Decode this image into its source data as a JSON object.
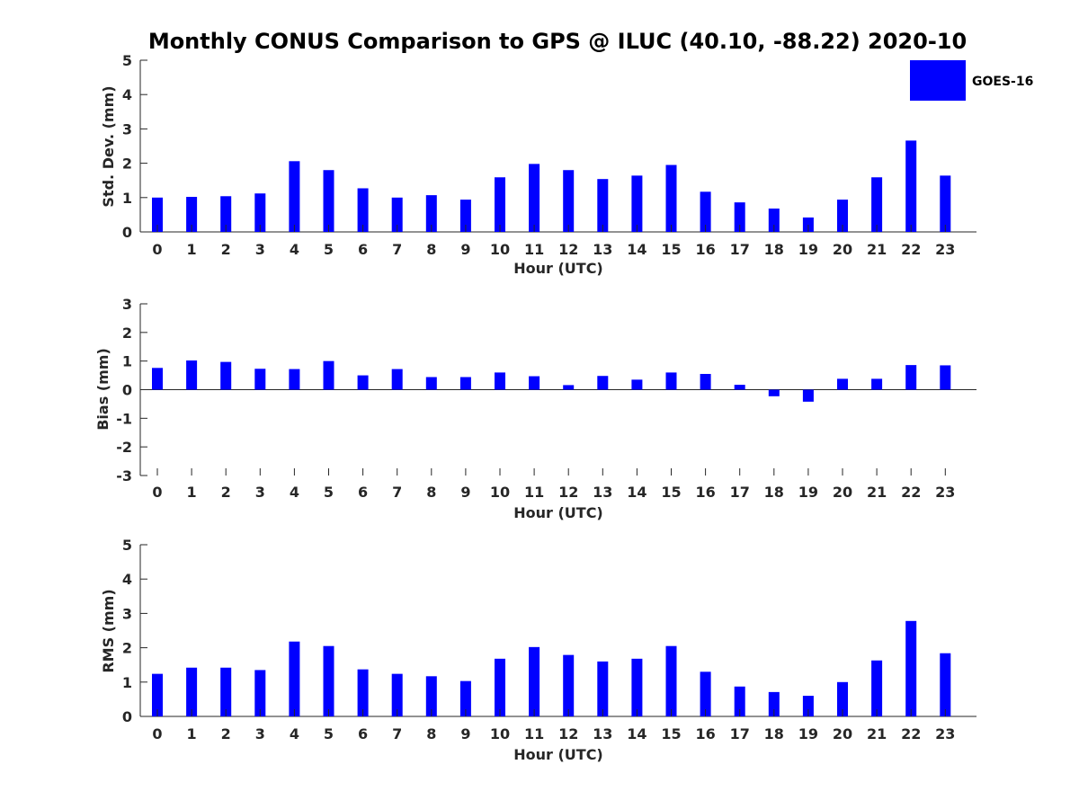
{
  "title": "Monthly CONUS Comparison to GPS @ ILUC (40.10, -88.22) 2020-10",
  "legend": {
    "label": "GOES-16",
    "position": "top-right"
  },
  "bar_color": "#0000ff",
  "chart_data": [
    {
      "type": "bar",
      "name": "std-dev",
      "categories": [
        "0",
        "1",
        "2",
        "3",
        "4",
        "5",
        "6",
        "7",
        "8",
        "9",
        "10",
        "11",
        "12",
        "13",
        "14",
        "15",
        "16",
        "17",
        "18",
        "19",
        "20",
        "21",
        "22",
        "23"
      ],
      "series": [
        {
          "name": "GOES-16",
          "values": [
            1.0,
            1.02,
            1.04,
            1.12,
            2.06,
            1.8,
            1.27,
            1.0,
            1.07,
            0.94,
            1.59,
            1.98,
            1.8,
            1.54,
            1.64,
            1.95,
            1.17,
            0.86,
            0.68,
            0.42,
            0.94,
            1.59,
            2.66,
            1.64
          ]
        }
      ],
      "xlabel": "Hour (UTC)",
      "ylabel": "Std. Dev. (mm)",
      "ylim": [
        0,
        5
      ],
      "yticks": [
        0,
        1,
        2,
        3,
        4,
        5
      ],
      "grid": false
    },
    {
      "type": "bar",
      "name": "bias",
      "categories": [
        "0",
        "1",
        "2",
        "3",
        "4",
        "5",
        "6",
        "7",
        "8",
        "9",
        "10",
        "11",
        "12",
        "13",
        "14",
        "15",
        "16",
        "17",
        "18",
        "19",
        "20",
        "21",
        "22",
        "23"
      ],
      "series": [
        {
          "name": "GOES-16",
          "values": [
            0.76,
            1.02,
            0.97,
            0.73,
            0.72,
            1.0,
            0.5,
            0.72,
            0.44,
            0.44,
            0.6,
            0.47,
            0.16,
            0.48,
            0.35,
            0.6,
            0.55,
            0.17,
            -0.23,
            -0.42,
            0.38,
            0.38,
            0.86,
            0.85
          ]
        }
      ],
      "xlabel": "Hour (UTC)",
      "ylabel": "Bias (mm)",
      "ylim": [
        -3,
        3
      ],
      "yticks": [
        -3,
        -2,
        -1,
        0,
        1,
        2,
        3
      ],
      "grid": false
    },
    {
      "type": "bar",
      "name": "rms",
      "categories": [
        "0",
        "1",
        "2",
        "3",
        "4",
        "5",
        "6",
        "7",
        "8",
        "9",
        "10",
        "11",
        "12",
        "13",
        "14",
        "15",
        "16",
        "17",
        "18",
        "19",
        "20",
        "21",
        "22",
        "23"
      ],
      "series": [
        {
          "name": "GOES-16",
          "values": [
            1.24,
            1.42,
            1.42,
            1.35,
            2.18,
            2.05,
            1.37,
            1.24,
            1.17,
            1.03,
            1.68,
            2.02,
            1.79,
            1.6,
            1.68,
            2.05,
            1.3,
            0.87,
            0.71,
            0.6,
            1.0,
            1.63,
            2.78,
            1.84
          ]
        }
      ],
      "xlabel": "Hour (UTC)",
      "ylabel": "RMS (mm)",
      "ylim": [
        0,
        5
      ],
      "yticks": [
        0,
        1,
        2,
        3,
        4,
        5
      ],
      "grid": false
    }
  ]
}
